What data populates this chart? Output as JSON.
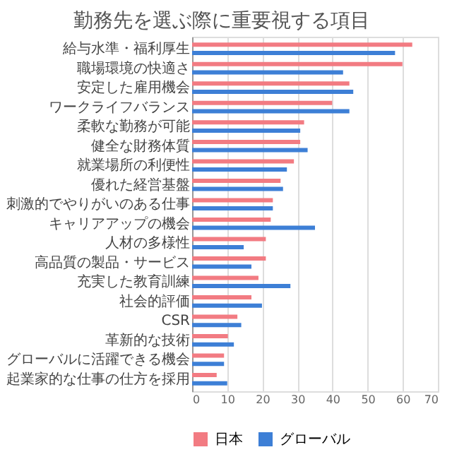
{
  "chart_data": {
    "type": "bar",
    "orientation": "horizontal",
    "title": "勤務先を選ぶ際に重要視する項目",
    "categories": [
      "給与水準・福利厚生",
      "職場環境の快適さ",
      "安定した雇用機会",
      "ワークライフバランス",
      "柔軟な勤務が可能",
      "健全な財務体質",
      "就業場所の利便性",
      "優れた経営基盤",
      "刺激的でやりがいのある仕事",
      "キャリアアップの機会",
      "人材の多様性",
      "高品質の製品・サービス",
      "充実した教育訓練",
      "社会的評価",
      "CSR",
      "革新的な技術",
      "グローバルに活躍できる機会",
      "起業家的な仕事の仕方を採用"
    ],
    "series": [
      {
        "name": "日本",
        "color": "#f27b82",
        "values": [
          62.7,
          59.9,
          44.8,
          39.9,
          31.9,
          30.8,
          29,
          25.2,
          23,
          22.4,
          21,
          21,
          18.9,
          16.9,
          12.9,
          10.2,
          9.1,
          7
        ]
      },
      {
        "name": "グローバル",
        "color": "#3d7fd6",
        "values": [
          57.8,
          43,
          45.9,
          44.8,
          30.8,
          32.9,
          27,
          25.9,
          23,
          35,
          14.7,
          16.9,
          28,
          19.9,
          14,
          11.9,
          9.1,
          10
        ]
      }
    ],
    "xlim": [
      0,
      70
    ],
    "xticks": [
      0,
      10,
      20,
      30,
      40,
      50,
      60,
      70
    ],
    "grid": "x",
    "legend": "bottom"
  }
}
